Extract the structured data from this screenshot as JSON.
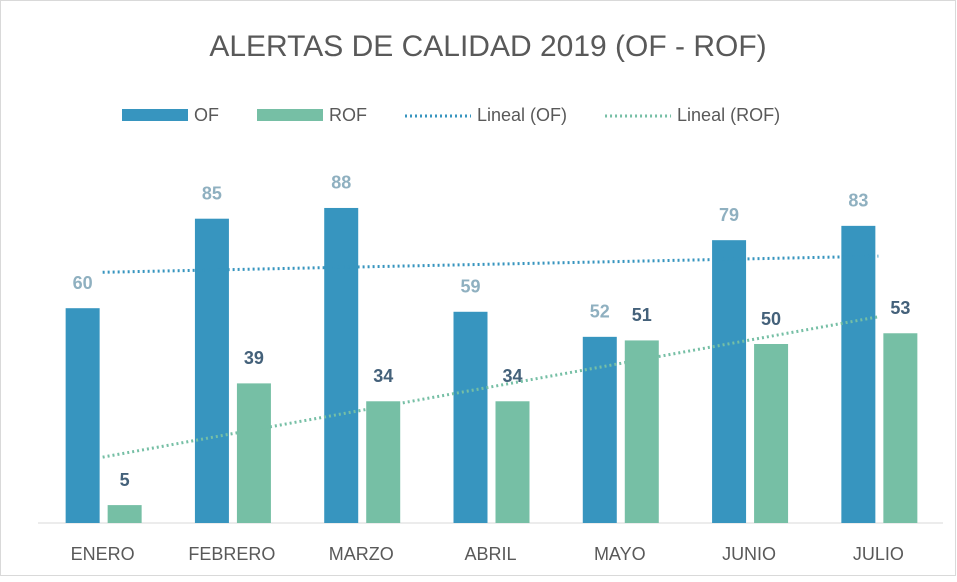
{
  "chart_data": {
    "type": "bar",
    "title": "ALERTAS DE CALIDAD 2019 (OF - ROF)",
    "categories": [
      "ENERO",
      "FEBRERO",
      "MARZO",
      "ABRIL",
      "MAYO",
      "JUNIO",
      "JULIO"
    ],
    "series": [
      {
        "name": "OF",
        "color": "#3795bf",
        "label_color": "#8fb0c0",
        "values": [
          60,
          85,
          88,
          59,
          52,
          79,
          83
        ]
      },
      {
        "name": "ROF",
        "color": "#76bfa5",
        "label_color": "#44617a",
        "values": [
          5,
          39,
          34,
          34,
          51,
          50,
          53
        ]
      }
    ],
    "trendlines": [
      {
        "name": "Lineal (OF)",
        "series": 0
      },
      {
        "name": "Lineal (ROF)",
        "series": 1
      }
    ],
    "ylim": [
      0,
      100
    ]
  }
}
